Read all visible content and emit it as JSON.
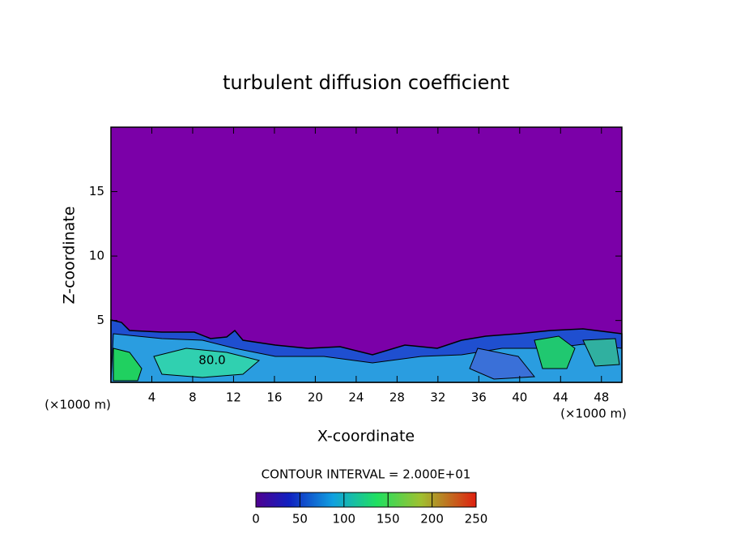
{
  "chart_data": {
    "type": "contour",
    "title": "turbulent diffusion coefficient",
    "x_label": "X-coordinate",
    "y_label": "Z-coordinate",
    "x_unit": "(×1000 m)",
    "y_unit": "(×1000 m)",
    "xlim": [
      0,
      50
    ],
    "xticks": [
      4,
      8,
      12,
      16,
      20,
      24,
      28,
      32,
      36,
      40,
      44,
      48
    ],
    "ylim": [
      0.2,
      20
    ],
    "yticks": [
      5,
      10,
      15
    ],
    "contour_labels": [
      "80.0"
    ],
    "contour_interval": "CONTOUR INTERVAL = 2.000E+01",
    "background_color": "#7b00a8",
    "clim": [
      0,
      250
    ],
    "cticks": [
      0,
      50,
      100,
      150,
      200,
      250
    ]
  }
}
